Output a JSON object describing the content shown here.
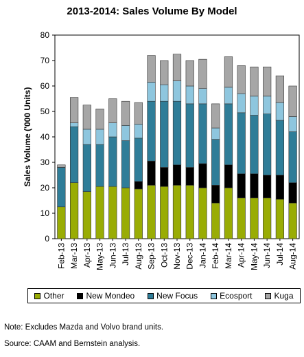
{
  "chart_data": {
    "type": "bar",
    "stacked": true,
    "title": "2013-2014: Sales Volume By Model",
    "ylabel": "Sales Volume ('000 Units)",
    "xlabel": "",
    "ylim": [
      0,
      80
    ],
    "yticks": [
      0,
      10,
      20,
      30,
      40,
      50,
      60,
      70,
      80
    ],
    "grid": false,
    "legend_position": "bottom",
    "categories": [
      "Feb-13",
      "Mar-13",
      "Apr-13",
      "May-13",
      "Jun-13",
      "Jul-13",
      "Aug-13",
      "Sep-13",
      "Oct-13",
      "Nov-13",
      "Dec-13",
      "Jan-14",
      "Feb-14",
      "Mar-14",
      "Apr-14",
      "May-14",
      "Jun-14",
      "Jul-14",
      "Aug-14"
    ],
    "series": [
      {
        "name": "Other",
        "color": "#99AC04",
        "values": [
          12.5,
          22,
          18.5,
          20.5,
          20.5,
          20,
          19.5,
          21,
          20.5,
          21,
          21,
          20,
          14,
          20,
          16,
          16,
          16,
          15.5,
          14
        ]
      },
      {
        "name": "New Mondeo",
        "color": "#000000",
        "values": [
          0,
          0,
          0,
          0,
          0,
          0,
          3,
          9.5,
          7.5,
          8,
          7,
          9.5,
          7,
          9,
          9.5,
          9.5,
          9,
          9.5,
          8
        ]
      },
      {
        "name": "New Focus",
        "color": "#2F7D98",
        "values": [
          15.5,
          22,
          18.5,
          16.5,
          19.5,
          18.5,
          17,
          23.5,
          26,
          25,
          25,
          23.5,
          18,
          24,
          24,
          23,
          24,
          21.5,
          20
        ]
      },
      {
        "name": "Ecosport",
        "color": "#8EC6DE",
        "values": [
          0,
          1.5,
          6,
          6,
          5.5,
          6,
          5.5,
          7.5,
          6.5,
          8,
          7,
          6,
          4.5,
          6.5,
          7.5,
          7.5,
          7,
          7,
          6
        ]
      },
      {
        "name": "Kuga",
        "color": "#A6A6A6",
        "values": [
          1,
          10,
          9.5,
          8,
          9.5,
          9.5,
          8.5,
          10.5,
          9.5,
          10.5,
          10,
          11.5,
          9.5,
          12,
          11,
          11.5,
          11.5,
          10.5,
          12
        ]
      }
    ]
  },
  "notes": {
    "note": "Note: Excludes Mazda and Volvo brand units.",
    "source": "Source: CAAM and Bernstein analysis."
  }
}
